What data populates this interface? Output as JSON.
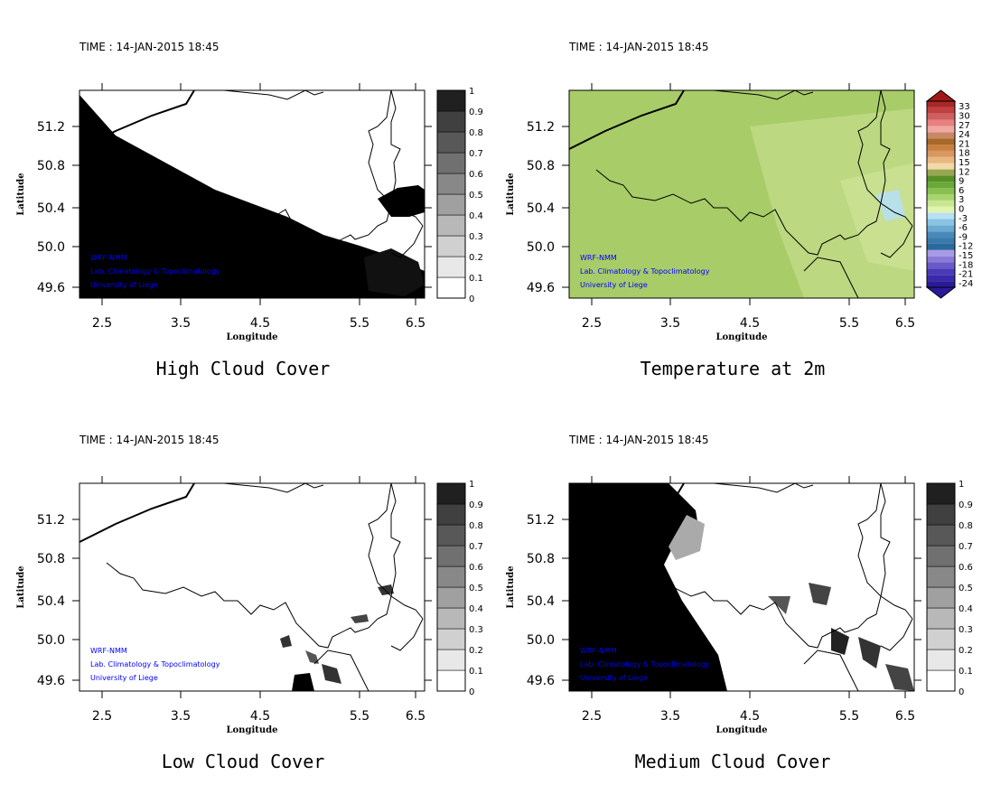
{
  "chart_data": [
    {
      "type": "heatmap",
      "title": "High Cloud Cover",
      "time_label": "TIME : 14-JAN-2015 18:45",
      "xlabel": "Longitude",
      "ylabel": "Latitude",
      "xticks": [
        "2.5",
        "3.5",
        "4.5",
        "5.5",
        "6.5"
      ],
      "yticks": [
        "51.2",
        "50.8",
        "50.4",
        "50.0",
        "49.6"
      ],
      "annotations": [
        "WRF-NMM",
        "Lab. Climatology & Topoclimatology",
        "University of Liege"
      ],
      "colorbar": {
        "labels": [
          "0",
          "0.1",
          "0.2",
          "0.3",
          "0.4",
          "0.5",
          "0.6",
          "0.7",
          "0.8",
          "0.9",
          "1"
        ],
        "colors": [
          "#ffffff",
          "#e8e8e8",
          "#d0d0d0",
          "#b8b8b8",
          "#a0a0a0",
          "#888888",
          "#707070",
          "#585858",
          "#404040",
          "#202020"
        ]
      },
      "field": "cloud fraction, high values (≈1) over western/southern region"
    },
    {
      "type": "heatmap",
      "title": "Temperature at 2m",
      "time_label": "TIME : 14-JAN-2015 18:45",
      "xlabel": "Longitude",
      "ylabel": "Latitude",
      "xticks": [
        "2.5",
        "3.5",
        "4.5",
        "5.5",
        "6.5"
      ],
      "yticks": [
        "51.2",
        "50.8",
        "50.4",
        "50.0",
        "49.6"
      ],
      "annotations": [
        "WRF-NMM",
        "Lab. Climatology & Topoclimatology",
        "University of Liege"
      ],
      "colorbar": {
        "labels": [
          "-24",
          "-21",
          "-18",
          "-15",
          "-12",
          "-9",
          "-6",
          "-3",
          "0",
          "3",
          "6",
          "9",
          "12",
          "15",
          "18",
          "21",
          "24",
          "27",
          "30",
          "33"
        ],
        "colors": [
          "#2a1a9a",
          "#3a2aaa",
          "#4a3ab8",
          "#6a5ac8",
          "#8a7ad8",
          "#a89ae8",
          "#2a6a9a",
          "#3a7aaa",
          "#4a8aba",
          "#6aaad0",
          "#8ac4e4",
          "#b8e0f4",
          "#e0f4b0",
          "#c8e890",
          "#a8d470",
          "#88c050",
          "#6aa838",
          "#589028",
          "#98a850",
          "#f4d8a8",
          "#e8b880",
          "#d89860",
          "#c88040",
          "#a86828",
          "#c88868",
          "#f0a8a0",
          "#e88080",
          "#d06060",
          "#c04040",
          "#a82828"
        ],
        "extend": "both",
        "under": "#2a1a9a",
        "over": "#a01818"
      },
      "field": "2 m temperature, mostly 0–9 °C, slightly colder in southeast"
    },
    {
      "type": "heatmap",
      "title": "Low Cloud Cover",
      "time_label": "TIME : 14-JAN-2015 18:45",
      "xlabel": "Longitude",
      "ylabel": "Latitude",
      "xticks": [
        "2.5",
        "3.5",
        "4.5",
        "5.5",
        "6.5"
      ],
      "yticks": [
        "51.2",
        "50.8",
        "50.4",
        "50.0",
        "49.6"
      ],
      "annotations": [
        "WRF-NMM",
        "Lab. Climatology & Topoclimatology",
        "University of Liege"
      ],
      "colorbar": {
        "labels": [
          "0",
          "0.1",
          "0.2",
          "0.3",
          "0.4",
          "0.5",
          "0.6",
          "0.7",
          "0.8",
          "0.9",
          "1"
        ],
        "colors": [
          "#ffffff",
          "#e8e8e8",
          "#d0d0d0",
          "#b8b8b8",
          "#a0a0a0",
          "#888888",
          "#707070",
          "#585858",
          "#404040",
          "#202020"
        ]
      },
      "field": "cloud fraction, mostly 0 with small patches in the south"
    },
    {
      "type": "heatmap",
      "title": "Medium Cloud Cover",
      "time_label": "TIME : 14-JAN-2015 18:45",
      "xlabel": "Longitude",
      "ylabel": "Latitude",
      "xticks": [
        "2.5",
        "3.5",
        "4.5",
        "5.5",
        "6.5"
      ],
      "yticks": [
        "51.2",
        "50.8",
        "50.4",
        "50.0",
        "49.6"
      ],
      "annotations": [
        "WRF-NMM",
        "Lab. Climatology & Topoclimatology",
        "University of Liege"
      ],
      "colorbar": {
        "labels": [
          "0",
          "0.1",
          "0.2",
          "0.3",
          "0.4",
          "0.5",
          "0.6",
          "0.7",
          "0.8",
          "0.9",
          "1"
        ],
        "colors": [
          "#ffffff",
          "#e8e8e8",
          "#d0d0d0",
          "#b8b8b8",
          "#a0a0a0",
          "#888888",
          "#707070",
          "#585858",
          "#404040",
          "#202020"
        ]
      },
      "field": "cloud fraction, ≈1 in the west, patches in the southeast"
    }
  ]
}
